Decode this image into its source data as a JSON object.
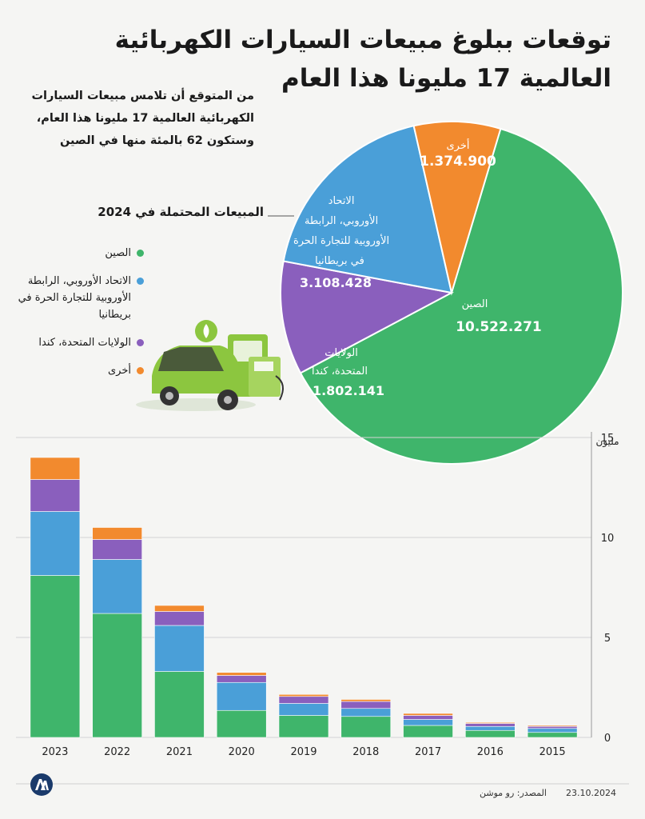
{
  "title": "توقعات ببلوغ مبيعات السيارات الكهربائية العالمية 17 مليونا هذا العام",
  "subtitle": "من المتوقع أن تلامس مبيعات السيارات الكهربائية العالمية 17 مليونا هذا العام، وستكون 62 بالمئة منها في الصين",
  "pie_label": "المبيعات المحتملة في 2024",
  "legend": [
    {
      "label": "الصين",
      "color": "#3fb56b"
    },
    {
      "label": "الاتحاد الأوروبي، الرابطة الأوروبية للتجارة الحرة في بريطانيا",
      "color": "#4a9fd8"
    },
    {
      "label": "الولايات المتحدة، كندا",
      "color": "#8a5fbd"
    },
    {
      "label": "أخرى",
      "color": "#f28a2e"
    }
  ],
  "chart_data": [
    {
      "type": "pie",
      "title": "المبيعات المحتملة في 2024",
      "slices": [
        {
          "label": "الصين",
          "value_label": "10.522.271",
          "value": 10522271,
          "color": "#3fb56b"
        },
        {
          "label": "الولايات المتحدة، كندا",
          "value_label": "1.802.141",
          "value": 1802141,
          "color": "#8a5fbd"
        },
        {
          "label": "الاتحاد الأوروبي، الرابطة الأوروبية للتجارة الحرة في بريطانيا",
          "value_label": "3.108.428",
          "value": 3108428,
          "color": "#4a9fd8"
        },
        {
          "label": "أخرى",
          "value_label": "1.374.900",
          "value": 1374900,
          "color": "#f28a2e"
        }
      ]
    },
    {
      "type": "bar",
      "stacked": true,
      "categories": [
        "2023",
        "2022",
        "2021",
        "2020",
        "2019",
        "2018",
        "2017",
        "2016",
        "2015"
      ],
      "series": [
        {
          "name": "الصين",
          "color": "#3fb56b",
          "values": [
            8.1,
            6.2,
            3.3,
            1.35,
            1.1,
            1.05,
            0.6,
            0.35,
            0.25
          ]
        },
        {
          "name": "الاتحاد الأوروبي، الرابطة الأوروبية للتجارة الحرة في بريطانيا",
          "color": "#4a9fd8",
          "values": [
            3.2,
            2.7,
            2.3,
            1.4,
            0.6,
            0.4,
            0.3,
            0.2,
            0.2
          ]
        },
        {
          "name": "الولايات المتحدة، كندا",
          "color": "#8a5fbd",
          "values": [
            1.6,
            1.0,
            0.7,
            0.35,
            0.35,
            0.35,
            0.2,
            0.15,
            0.1
          ]
        },
        {
          "name": "أخرى",
          "color": "#f28a2e",
          "values": [
            1.1,
            0.6,
            0.3,
            0.15,
            0.1,
            0.1,
            0.1,
            0.05,
            0.05
          ]
        }
      ],
      "ylim": [
        0,
        15
      ],
      "yticks": [
        "0",
        "5",
        "10",
        "15"
      ],
      "yunit": "مليون",
      "grid": true
    }
  ],
  "footer": {
    "source": "المصدر: رو موشن",
    "date": "23.10.2024",
    "logo": "AA"
  }
}
